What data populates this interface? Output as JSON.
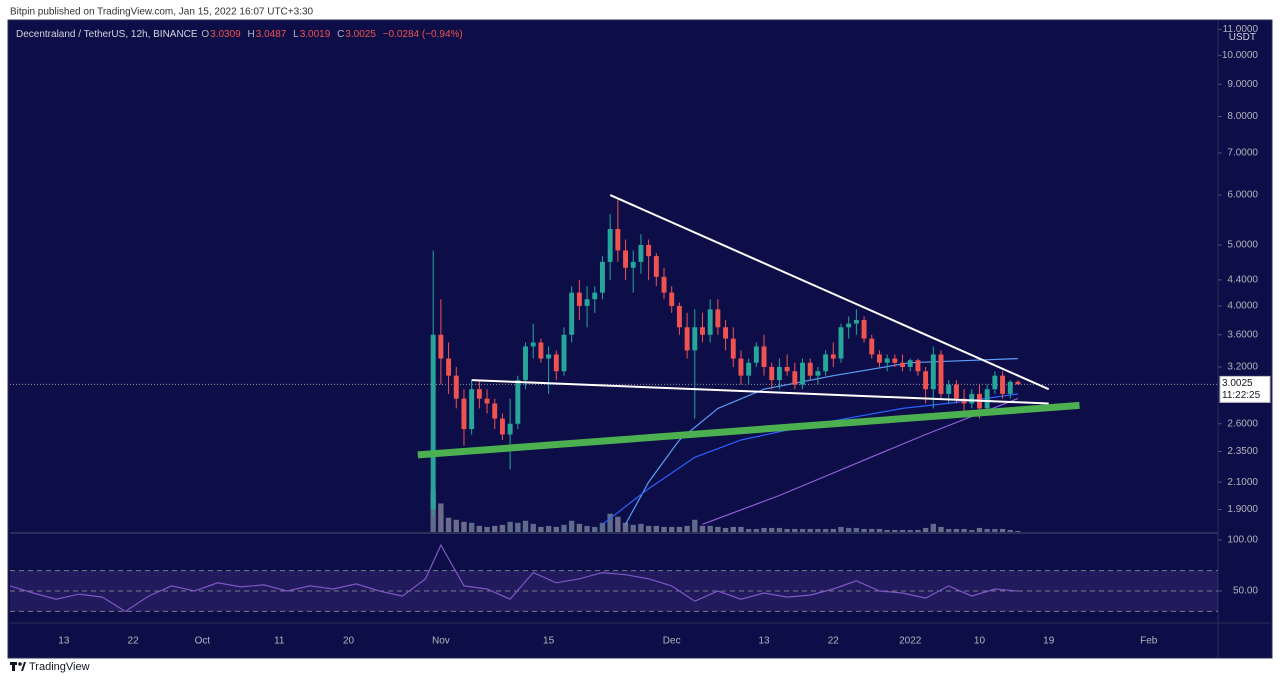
{
  "chart_data": {
    "type": "candlestick",
    "publisher": "Bitpin published on TradingView.com, Jan 15, 2022 16:07 UTC+3:30",
    "title": "Decentraland / TetherUS, 12h, BINANCE",
    "ohlc_labels": [
      "O",
      "H",
      "L",
      "C"
    ],
    "change": "−0.0284 (−0.94%)",
    "currency": "USDT",
    "countdown": "11:22:25",
    "brand": "TradingView",
    "log_scale": true,
    "colors": {
      "up": "#26a69a",
      "down": "#ef5350",
      "volume_up": "#5d6a8a",
      "volume_down": "#6b6b8c"
    },
    "x": [
      "2021-10-31",
      "2021-11-01",
      "2021-11-02",
      "2021-11-03",
      "2021-11-04",
      "2021-11-05",
      "2021-11-06",
      "2021-11-07",
      "2021-11-08",
      "2021-11-09",
      "2021-11-10",
      "2021-11-11",
      "2021-11-12",
      "2021-11-13",
      "2021-11-14",
      "2021-11-15",
      "2021-11-16",
      "2021-11-17",
      "2021-11-18",
      "2021-11-19",
      "2021-11-20",
      "2021-11-21",
      "2021-11-22",
      "2021-11-23",
      "2021-11-24",
      "2021-11-25",
      "2021-11-26",
      "2021-11-27",
      "2021-11-28",
      "2021-11-29",
      "2021-11-30",
      "2021-12-01",
      "2021-12-02",
      "2021-12-03",
      "2021-12-04",
      "2021-12-05",
      "2021-12-06",
      "2021-12-07",
      "2021-12-08",
      "2021-12-09",
      "2021-12-10",
      "2021-12-11",
      "2021-12-12",
      "2021-12-13",
      "2021-12-14",
      "2021-12-15",
      "2021-12-16",
      "2021-12-17",
      "2021-12-18",
      "2021-12-19",
      "2021-12-20",
      "2021-12-21",
      "2021-12-22",
      "2021-12-23",
      "2021-12-24",
      "2021-12-25",
      "2021-12-26",
      "2021-12-27",
      "2021-12-28",
      "2021-12-29",
      "2021-12-30",
      "2021-12-31",
      "2022-01-01",
      "2022-01-02",
      "2022-01-03",
      "2022-01-04",
      "2022-01-05",
      "2022-01-06",
      "2022-01-07",
      "2022-01-08",
      "2022-01-09",
      "2022-01-10",
      "2022-01-11",
      "2022-01-12",
      "2022-01-13",
      "2022-01-14",
      "2022-01-15"
    ],
    "open": [
      1.9,
      3.6,
      3.3,
      3.1,
      2.85,
      2.55,
      2.95,
      2.85,
      2.8,
      2.65,
      2.5,
      2.6,
      3.05,
      3.45,
      3.5,
      3.3,
      3.35,
      3.15,
      3.6,
      4.2,
      4.0,
      4.1,
      4.2,
      4.7,
      5.3,
      4.9,
      4.6,
      4.7,
      5.0,
      4.8,
      4.45,
      4.2,
      4.0,
      3.7,
      3.4,
      3.7,
      3.6,
      3.95,
      3.7,
      3.55,
      3.3,
      3.1,
      3.25,
      3.45,
      3.2,
      3.05,
      3.2,
      3.15,
      3.0,
      3.25,
      3.1,
      3.15,
      3.35,
      3.3,
      3.7,
      3.75,
      3.8,
      3.55,
      3.35,
      3.25,
      3.3,
      3.25,
      3.2,
      3.28,
      3.15,
      2.95,
      3.35,
      2.9,
      3.0,
      2.85,
      2.8,
      2.9,
      2.75,
      2.95,
      3.1,
      2.9,
      3.0309
    ],
    "high": [
      4.9,
      4.1,
      3.5,
      3.2,
      2.95,
      3.05,
      3.05,
      2.95,
      2.85,
      2.7,
      2.85,
      3.1,
      3.5,
      3.75,
      3.55,
      3.45,
      3.4,
      3.7,
      4.3,
      4.4,
      4.3,
      4.3,
      4.8,
      5.6,
      5.9,
      5.1,
      4.9,
      5.2,
      5.1,
      4.85,
      4.6,
      4.3,
      4.05,
      3.9,
      3.95,
      3.9,
      4.1,
      4.1,
      3.8,
      3.7,
      3.4,
      3.3,
      3.5,
      3.6,
      3.25,
      3.3,
      3.35,
      3.25,
      3.3,
      3.3,
      3.2,
      3.4,
      3.5,
      3.75,
      3.85,
      3.95,
      3.85,
      3.6,
      3.4,
      3.35,
      3.35,
      3.35,
      3.3,
      3.3,
      3.2,
      3.45,
      3.4,
      3.05,
      3.05,
      2.95,
      2.95,
      3.0,
      3.0,
      3.15,
      3.15,
      3.05,
      3.0487
    ],
    "low": [
      1.85,
      3.0,
      2.9,
      2.75,
      2.4,
      2.5,
      2.75,
      2.7,
      2.55,
      2.45,
      2.2,
      2.55,
      2.95,
      3.3,
      3.25,
      2.9,
      3.05,
      3.1,
      3.5,
      3.8,
      3.7,
      3.9,
      4.1,
      4.4,
      4.7,
      4.4,
      4.2,
      4.5,
      4.4,
      4.3,
      4.1,
      3.9,
      3.6,
      3.3,
      2.65,
      3.5,
      3.5,
      3.6,
      3.4,
      3.2,
      3.0,
      3.0,
      3.2,
      3.1,
      2.95,
      2.95,
      3.1,
      2.95,
      2.95,
      3.05,
      3.0,
      3.1,
      3.2,
      3.25,
      3.55,
      3.6,
      3.5,
      3.3,
      3.2,
      3.15,
      3.2,
      3.15,
      3.15,
      3.1,
      2.8,
      2.75,
      2.85,
      2.8,
      2.8,
      2.7,
      2.75,
      2.65,
      2.7,
      2.9,
      2.85,
      2.85,
      3.0019
    ],
    "close": [
      3.6,
      3.3,
      3.1,
      2.85,
      2.55,
      2.95,
      2.85,
      2.8,
      2.65,
      2.5,
      2.6,
      3.05,
      3.45,
      3.5,
      3.3,
      3.35,
      3.15,
      3.6,
      4.2,
      4.0,
      4.1,
      4.2,
      4.7,
      5.3,
      4.9,
      4.6,
      4.7,
      5.0,
      4.8,
      4.45,
      4.2,
      4.0,
      3.7,
      3.4,
      3.7,
      3.6,
      3.95,
      3.7,
      3.55,
      3.3,
      3.1,
      3.25,
      3.45,
      3.2,
      3.05,
      3.2,
      3.15,
      3.0,
      3.25,
      3.1,
      3.15,
      3.35,
      3.3,
      3.7,
      3.75,
      3.8,
      3.55,
      3.35,
      3.25,
      3.3,
      3.25,
      3.2,
      3.28,
      3.15,
      2.95,
      3.35,
      2.9,
      3.0,
      2.85,
      2.8,
      2.9,
      2.75,
      2.95,
      3.1,
      2.9,
      3.0309,
      3.0025
    ],
    "volume": [
      40,
      28,
      14,
      12,
      10,
      9,
      6,
      5,
      6,
      7,
      10,
      9,
      11,
      8,
      5,
      6,
      5,
      7,
      11,
      8,
      6,
      5,
      9,
      18,
      15,
      9,
      7,
      8,
      6,
      6,
      5,
      5,
      5,
      6,
      12,
      6,
      6,
      5,
      4,
      5,
      5,
      3,
      3,
      4,
      4,
      4,
      3,
      3,
      3,
      3,
      3,
      3,
      3,
      5,
      4,
      4,
      3,
      3,
      3,
      2,
      2,
      2,
      2,
      2,
      4,
      8,
      5,
      3,
      3,
      3,
      2,
      4,
      3,
      3,
      3,
      2,
      1
    ],
    "volume_ylim": [
      0,
      500
    ],
    "xlim": [
      "2021-09-06",
      "2022-02-10"
    ],
    "xticks": [
      {
        "value": "2021-09-13",
        "label": "13"
      },
      {
        "value": "2021-09-22",
        "label": "22"
      },
      {
        "value": "2021-10-01",
        "label": "Oct"
      },
      {
        "value": "2021-10-11",
        "label": "11"
      },
      {
        "value": "2021-10-20",
        "label": "20"
      },
      {
        "value": "2021-11-01",
        "label": "Nov"
      },
      {
        "value": "2021-11-15",
        "label": "15"
      },
      {
        "value": "2021-12-01",
        "label": "Dec"
      },
      {
        "value": "2021-12-13",
        "label": "13"
      },
      {
        "value": "2021-12-22",
        "label": "22"
      },
      {
        "value": "2022-01-01",
        "label": "2022"
      },
      {
        "value": "2022-01-10",
        "label": "10"
      },
      {
        "value": "2022-01-19",
        "label": "19"
      },
      {
        "value": "2022-02-01",
        "label": "Feb"
      }
    ],
    "ylim": [
      1.75,
      11.3
    ],
    "yticks": [
      {
        "value": 11,
        "label": "11.0000"
      },
      {
        "value": 10,
        "label": "10.0000"
      },
      {
        "value": 9,
        "label": "9.0000"
      },
      {
        "value": 8,
        "label": "8.0000"
      },
      {
        "value": 7,
        "label": "7.0000"
      },
      {
        "value": 6,
        "label": "6.0000"
      },
      {
        "value": 5,
        "label": "5.0000"
      },
      {
        "value": 4.4,
        "label": "4.4000"
      },
      {
        "value": 4,
        "label": "4.0000"
      },
      {
        "value": 3.6,
        "label": "3.6000"
      },
      {
        "value": 3.2,
        "label": "3.2000"
      },
      {
        "value": 2.6,
        "label": "2.6000"
      },
      {
        "value": 2.35,
        "label": "2.3500"
      },
      {
        "value": 2.1,
        "label": "2.1000"
      },
      {
        "value": 1.9,
        "label": "1.9000"
      }
    ],
    "moving_averages": [
      {
        "color": "#5b9cf6",
        "x": [
          "2021-11-25",
          "2021-11-28",
          "2021-12-02",
          "2021-12-07",
          "2021-12-13",
          "2021-12-22",
          "2022-01-01",
          "2022-01-15"
        ],
        "values": [
          1.8,
          2.1,
          2.45,
          2.75,
          2.95,
          3.1,
          3.25,
          3.3
        ]
      },
      {
        "color": "#2962ff",
        "x": [
          "2021-11-22",
          "2021-11-28",
          "2021-12-04",
          "2021-12-10",
          "2021-12-20",
          "2021-12-31",
          "2022-01-08",
          "2022-01-15"
        ],
        "values": [
          1.8,
          2.05,
          2.3,
          2.45,
          2.6,
          2.75,
          2.82,
          2.9
        ]
      },
      {
        "color": "#8e5fd6",
        "x": [
          "2021-12-05",
          "2021-12-15",
          "2021-12-25",
          "2022-01-03",
          "2022-01-10",
          "2022-01-15"
        ],
        "values": [
          1.8,
          2.0,
          2.25,
          2.5,
          2.7,
          2.85
        ]
      }
    ],
    "drawings": [
      {
        "color": "#ffffff",
        "width": 2,
        "x": [
          "2021-11-23",
          "2022-01-19"
        ],
        "values": [
          6.0,
          2.95
        ]
      },
      {
        "color": "#ffffff",
        "width": 2,
        "x": [
          "2021-11-05",
          "2022-01-19"
        ],
        "values": [
          3.05,
          2.8
        ]
      },
      {
        "color": "#4caf50",
        "width": 7,
        "x": [
          "2021-10-29",
          "2022-01-23"
        ],
        "values": [
          2.32,
          2.78
        ]
      }
    ],
    "rsi": {
      "color": "#7e57c2",
      "ylim": [
        19.6,
        105.9
      ],
      "yticks": [
        {
          "value": 100,
          "label": "100.00"
        },
        {
          "value": 50,
          "label": "50.00"
        }
      ],
      "band": [
        30,
        70
      ],
      "levels": [
        70,
        50,
        30
      ],
      "x": [
        "2021-09-06",
        "2021-09-09",
        "2021-09-12",
        "2021-09-15",
        "2021-09-18",
        "2021-09-21",
        "2021-09-24",
        "2021-09-27",
        "2021-09-30",
        "2021-10-03",
        "2021-10-06",
        "2021-10-09",
        "2021-10-12",
        "2021-10-15",
        "2021-10-18",
        "2021-10-21",
        "2021-10-24",
        "2021-10-27",
        "2021-10-30",
        "2021-11-01",
        "2021-11-04",
        "2021-11-07",
        "2021-11-10",
        "2021-11-13",
        "2021-11-16",
        "2021-11-19",
        "2021-11-22",
        "2021-11-25",
        "2021-11-28",
        "2021-12-01",
        "2021-12-04",
        "2021-12-07",
        "2021-12-10",
        "2021-12-13",
        "2021-12-16",
        "2021-12-19",
        "2021-12-22",
        "2021-12-25",
        "2021-12-28",
        "2021-12-31",
        "2022-01-03",
        "2022-01-06",
        "2022-01-09",
        "2022-01-12",
        "2022-01-15"
      ],
      "values": [
        55,
        48,
        42,
        47,
        44,
        30,
        45,
        55,
        50,
        58,
        54,
        56,
        50,
        55,
        52,
        57,
        50,
        45,
        62,
        95,
        55,
        52,
        42,
        68,
        58,
        62,
        68,
        66,
        62,
        55,
        40,
        50,
        42,
        48,
        44,
        46,
        52,
        60,
        50,
        48,
        43,
        55,
        45,
        52,
        50
      ]
    }
  }
}
